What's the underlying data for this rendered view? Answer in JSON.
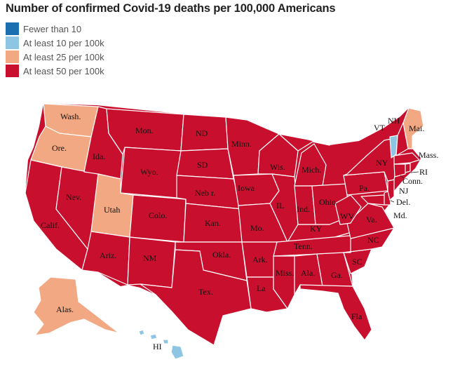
{
  "title": "Number of confirmed Covid-19 deaths per 100,000 Americans",
  "legend": [
    {
      "label": "Fewer than 10",
      "color": "#1a6fb0"
    },
    {
      "label": "At least 10 per 100k",
      "color": "#8ec5e3"
    },
    {
      "label": "At least 25 per 100k",
      "color": "#f2a882"
    },
    {
      "label": "At least 50 per 100k",
      "color": "#c8102e"
    }
  ],
  "states": {
    "wa": {
      "label": "Wash.",
      "category": 2
    },
    "or": {
      "label": "Ore.",
      "category": 2
    },
    "ca": {
      "label": "Calif.",
      "category": 3
    },
    "nv": {
      "label": "Nev.",
      "category": 3
    },
    "id": {
      "label": "Ida.",
      "category": 3
    },
    "mt": {
      "label": "Mon.",
      "category": 3
    },
    "wy": {
      "label": "Wyo.",
      "category": 3
    },
    "ut": {
      "label": "Utah",
      "category": 2
    },
    "az": {
      "label": "Ariz.",
      "category": 3
    },
    "co": {
      "label": "Colo.",
      "category": 3
    },
    "nm": {
      "label": "NM",
      "category": 3
    },
    "nd": {
      "label": "ND",
      "category": 3
    },
    "sd": {
      "label": "SD",
      "category": 3
    },
    "ne": {
      "label": "Neb r.",
      "category": 3
    },
    "ks": {
      "label": "Kan.",
      "category": 3
    },
    "ok": {
      "label": "Okla.",
      "category": 3
    },
    "tx": {
      "label": "Tex.",
      "category": 3
    },
    "mn": {
      "label": "Minn.",
      "category": 3
    },
    "ia": {
      "label": "Iowa",
      "category": 3
    },
    "mo": {
      "label": "Mo.",
      "category": 3
    },
    "ar": {
      "label": "Ark.",
      "category": 3
    },
    "la": {
      "label": "La",
      "category": 3
    },
    "wi": {
      "label": "Wis.",
      "category": 3
    },
    "il": {
      "label": "IL",
      "category": 3
    },
    "mi": {
      "label": "Mich.",
      "category": 3
    },
    "in": {
      "label": "Ind.",
      "category": 3
    },
    "oh": {
      "label": "Ohio",
      "category": 3
    },
    "ky": {
      "label": "KY",
      "category": 3
    },
    "tn": {
      "label": "Tenn.",
      "category": 3
    },
    "ms": {
      "label": "Miss.",
      "category": 3
    },
    "al": {
      "label": "Ala.",
      "category": 3
    },
    "ga": {
      "label": "Ga.",
      "category": 3
    },
    "fl": {
      "label": "Fla",
      "category": 3
    },
    "sc": {
      "label": "SC",
      "category": 3
    },
    "nc": {
      "label": "NC",
      "category": 3
    },
    "va": {
      "label": "Va.",
      "category": 3
    },
    "wv": {
      "label": "WV",
      "category": 3
    },
    "pa": {
      "label": "Pa.",
      "category": 3
    },
    "ny": {
      "label": "NY",
      "category": 3
    },
    "vt": {
      "label": "VT",
      "category": 1
    },
    "nh": {
      "label": "NH",
      "category": 3
    },
    "me": {
      "label": "Mai.",
      "category": 2
    },
    "ma": {
      "label": "Mass.",
      "category": 3
    },
    "ri": {
      "label": "RI",
      "category": 3
    },
    "ct": {
      "label": "Conn.",
      "category": 3
    },
    "nj": {
      "label": "NJ",
      "category": 3
    },
    "de": {
      "label": "Del.",
      "category": 3
    },
    "md": {
      "label": "Md.",
      "category": 3
    },
    "ak": {
      "label": "Alas.",
      "category": 2
    },
    "hi": {
      "label": "HI",
      "category": 1
    }
  }
}
